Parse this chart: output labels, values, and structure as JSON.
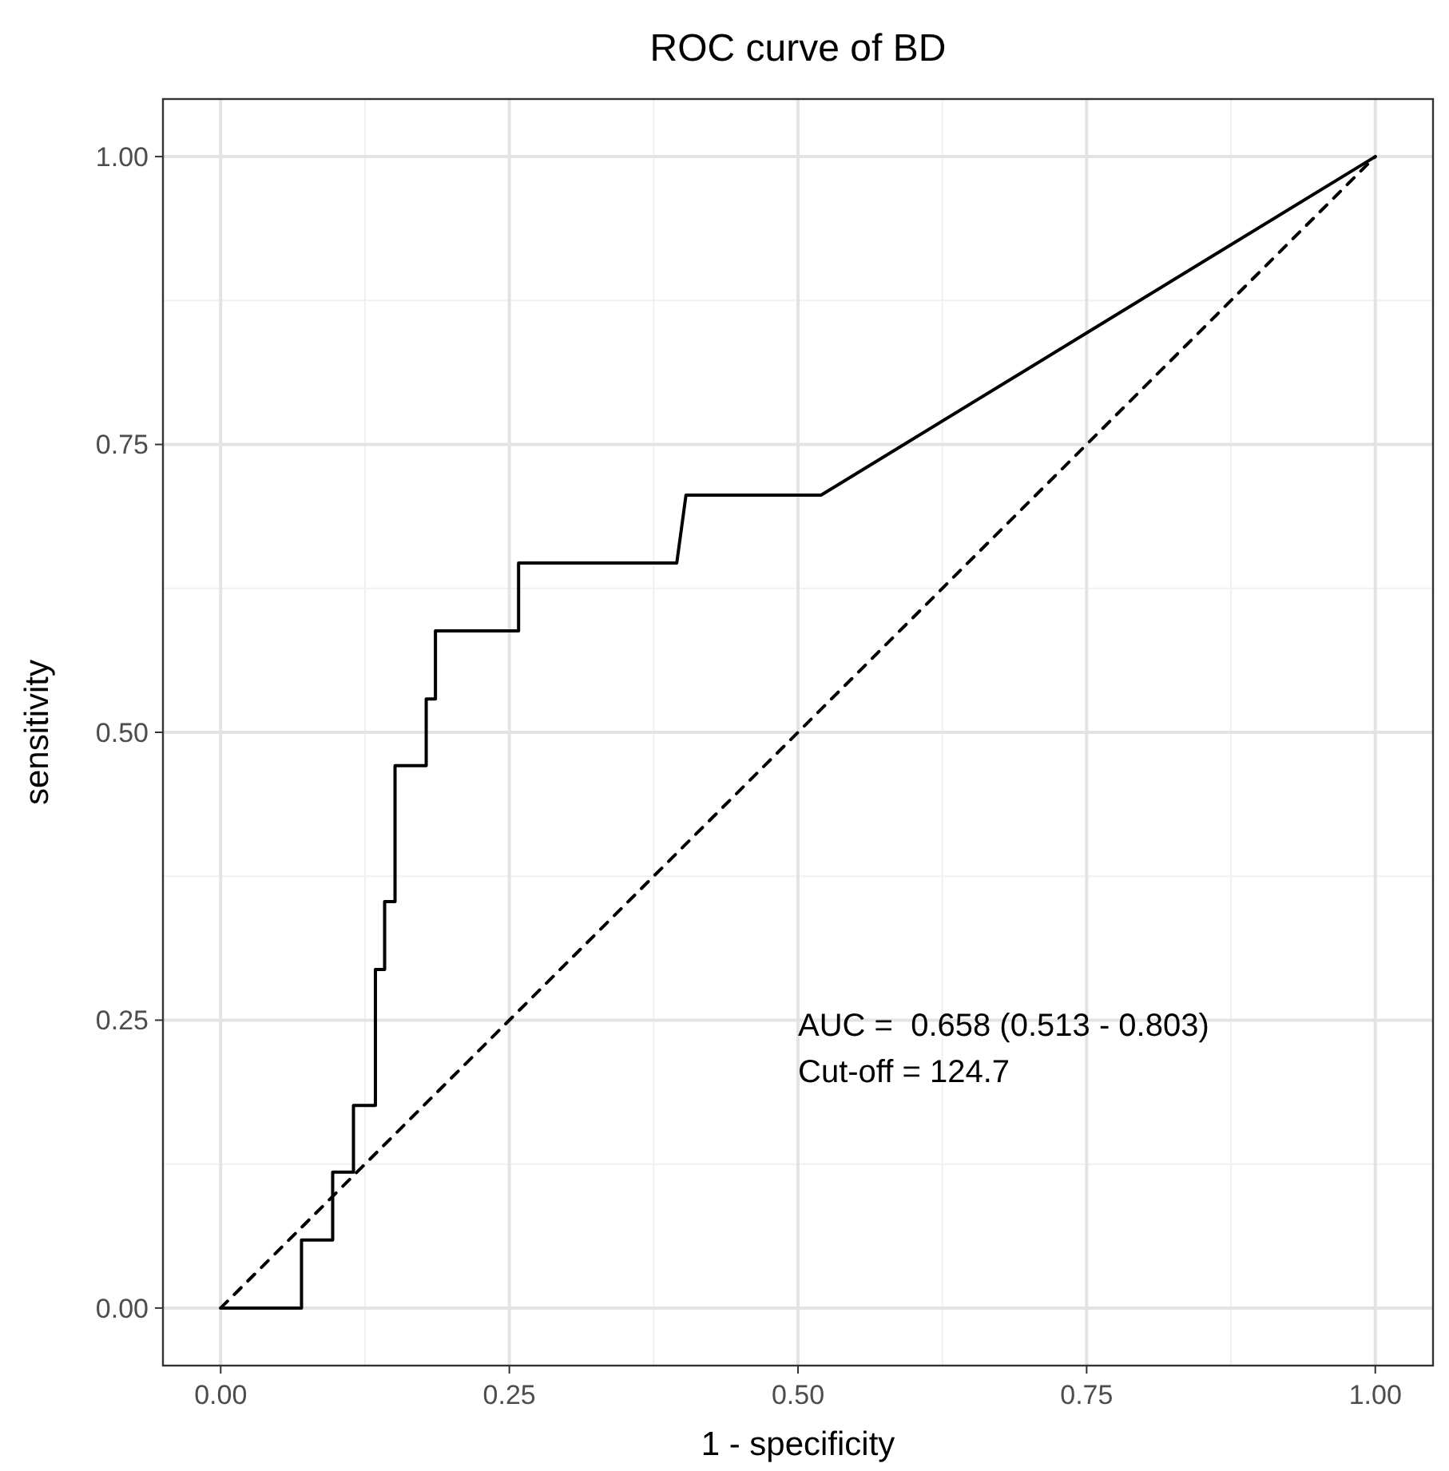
{
  "chart_data": {
    "type": "line",
    "title": "ROC curve of BD",
    "xlabel": "1 - specificity",
    "ylabel": "sensitivity",
    "xlim": [
      -0.05,
      1.05
    ],
    "ylim": [
      -0.05,
      1.05
    ],
    "xticks": [
      {
        "value": 0,
        "label": "0.00"
      },
      {
        "value": 0.25,
        "label": "0.25"
      },
      {
        "value": 0.5,
        "label": "0.50"
      },
      {
        "value": 0.75,
        "label": "0.75"
      },
      {
        "value": 1,
        "label": "1.00"
      }
    ],
    "yticks": [
      {
        "value": 0,
        "label": "0.00"
      },
      {
        "value": 0.25,
        "label": "0.25"
      },
      {
        "value": 0.5,
        "label": "0.50"
      },
      {
        "value": 0.75,
        "label": "0.75"
      },
      {
        "value": 1,
        "label": "1.00"
      }
    ],
    "grid": true,
    "series": [
      {
        "color": "#000000",
        "line_style": "solid",
        "x": [
          0,
          0.07,
          0.07,
          0.097,
          0.097,
          0.115,
          0.115,
          0.134,
          0.134,
          0.142,
          0.142,
          0.151,
          0.151,
          0.178,
          0.178,
          0.186,
          0.186,
          0.258,
          0.258,
          0.395,
          0.403,
          0.52,
          1
        ],
        "values": [
          0,
          0,
          0.059,
          0.059,
          0.118,
          0.118,
          0.176,
          0.176,
          0.294,
          0.294,
          0.353,
          0.353,
          0.471,
          0.471,
          0.529,
          0.529,
          0.588,
          0.588,
          0.647,
          0.647,
          0.706,
          0.706,
          1
        ]
      },
      {
        "color": "#000000",
        "line_style": "dashed",
        "x": [
          0,
          1
        ],
        "values": [
          0,
          1
        ]
      }
    ],
    "annotations": [
      "AUC =  0.658 (0.513 - 0.803)",
      "Cut-off = 124.7"
    ]
  }
}
